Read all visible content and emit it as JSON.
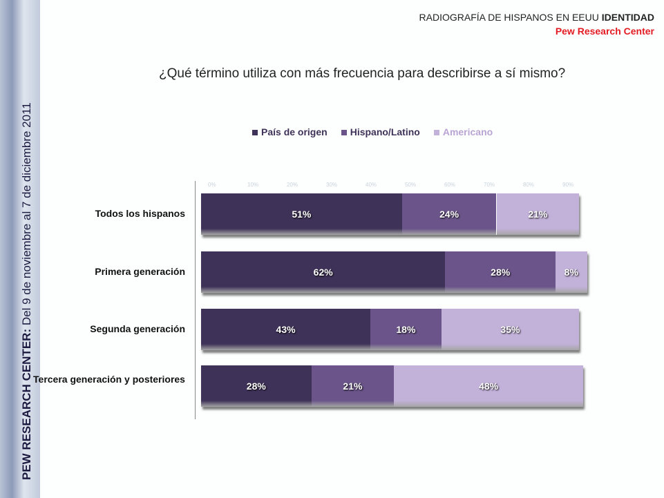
{
  "header": {
    "title_prefix": "RADIOGRAFÍA DE HISPANOS EN EEUU ",
    "title_bold": "IDENTIDAD",
    "source": "Pew Research Center"
  },
  "side": {
    "bold": "PEW RESEARCH CENTER:",
    "rest": " Del 9 de noviembre al 7 de diciembre 2011"
  },
  "chart_data": {
    "type": "bar",
    "stacked": true,
    "orientation": "horizontal",
    "title": "¿Qué término utiliza con más frecuencia para describirse a sí mismo?",
    "categories": [
      "Todos los hispanos",
      "Primera generación",
      "Segunda generación",
      "Tercera generación y posteriores"
    ],
    "series": [
      {
        "name": "País de origen",
        "color": "#3f3258",
        "values": [
          51,
          62,
          43,
          28
        ]
      },
      {
        "name": "Hispano/Latino",
        "color": "#6a5489",
        "values": [
          24,
          28,
          18,
          21
        ]
      },
      {
        "name": "Americano",
        "color": "#c2b1d9",
        "values": [
          21,
          8,
          35,
          48
        ]
      }
    ],
    "xticks": [
      "0%",
      "10%",
      "20%",
      "30%",
      "40%",
      "50%",
      "60%",
      "70%",
      "80%",
      "90%"
    ],
    "xlim": [
      0,
      100
    ],
    "legend": "top"
  }
}
